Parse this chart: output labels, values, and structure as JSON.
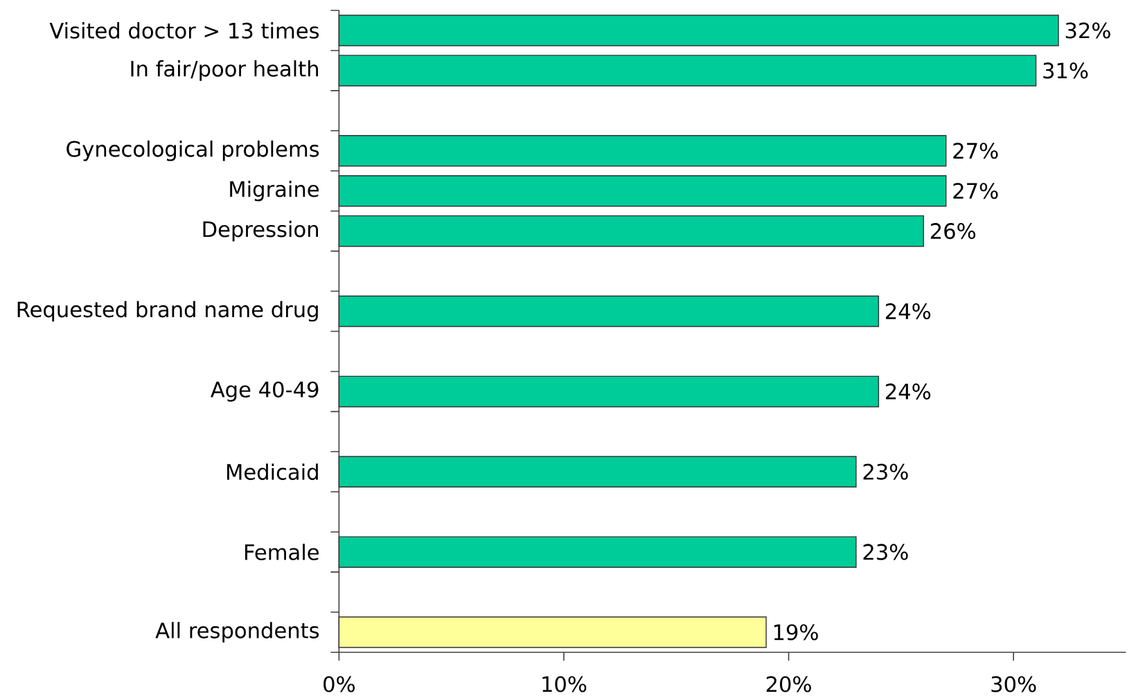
{
  "chart_data": {
    "type": "bar",
    "orientation": "horizontal",
    "categories": [
      "Visited doctor > 13 times",
      "In fair/poor health",
      null,
      "Gynecological problems",
      "Migraine",
      "Depression",
      null,
      "Requested brand name drug",
      null,
      "Age 40-49",
      null,
      "Medicaid",
      null,
      "Female",
      null,
      "All respondents"
    ],
    "values": [
      32,
      31,
      null,
      27,
      27,
      26,
      null,
      24,
      null,
      24,
      null,
      23,
      null,
      23,
      null,
      19
    ],
    "colors": [
      "#00cc99",
      "#00cc99",
      null,
      "#00cc99",
      "#00cc99",
      "#00cc99",
      null,
      "#00cc99",
      null,
      "#00cc99",
      null,
      "#00cc99",
      null,
      "#00cc99",
      null,
      "#ffff99"
    ],
    "value_labels": [
      "32%",
      "31%",
      null,
      "27%",
      "27%",
      "26%",
      null,
      "24%",
      null,
      "24%",
      null,
      "23%",
      null,
      "23%",
      null,
      "19%"
    ],
    "xlim": [
      0,
      35
    ],
    "xticks": [
      {
        "value": 0,
        "label": "0%"
      },
      {
        "value": 10,
        "label": "10%"
      },
      {
        "value": 20,
        "label": "20%"
      },
      {
        "value": 30,
        "label": "30%"
      }
    ]
  }
}
